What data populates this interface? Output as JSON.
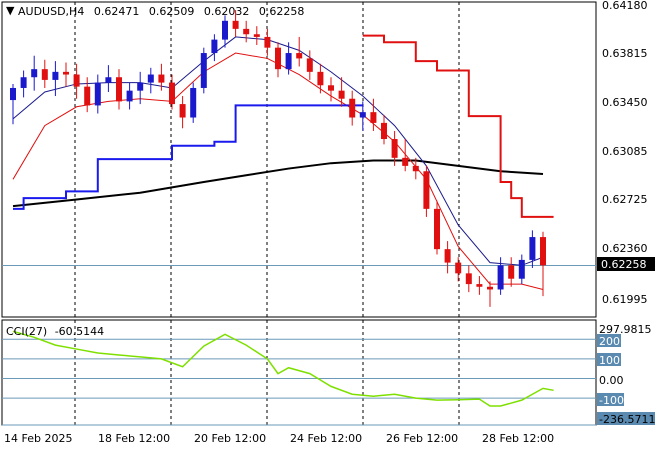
{
  "window": {
    "symbol_label": "AUDUSD,H4",
    "open": "0.62471",
    "high": "0.62509",
    "low": "0.62032",
    "close": "0.62258"
  },
  "price_axis": {
    "ticks": [
      "0.64180",
      "0.63815",
      "0.63450",
      "0.63085",
      "0.62725",
      "0.62360",
      "0.61995"
    ],
    "current_price_tag": "0.62258",
    "current_price_value": 0.62258
  },
  "indicator": {
    "label": "CCI(27)",
    "value": "-60.5144",
    "max_label": "297.9815",
    "min_label": "-236.5711",
    "levels": [
      "200",
      "100",
      "0.00",
      "-100"
    ]
  },
  "time_axis": {
    "labels": [
      "14 Feb 2025",
      "18 Feb 12:00",
      "20 Feb 12:00",
      "24 Feb 12:00",
      "26 Feb 12:00",
      "28 Feb 12:00"
    ]
  },
  "colors": {
    "bull": "#1a1acc",
    "bear": "#e01010",
    "ma_long": "#000000",
    "ma_short": "#1a1a8c",
    "envelope_red": "#e01010",
    "stop_blue": "#1a1aee",
    "cci_line": "#7ee000",
    "level_line": "#6a9ab8",
    "price_tag_bg": "#000000",
    "level_tag_bg": "#5a8ab0"
  },
  "chart_data": {
    "type": "candlestick",
    "price_range": [
      0.61875,
      0.6422
    ],
    "cci_range": [
      -236.5711,
      297.9815
    ],
    "candles": [
      [
        0.6349,
        0.6361,
        0.6331,
        0.6358
      ],
      [
        0.6358,
        0.6371,
        0.6351,
        0.6366
      ],
      [
        0.6366,
        0.6382,
        0.6356,
        0.6372
      ],
      [
        0.6372,
        0.6379,
        0.6358,
        0.6364
      ],
      [
        0.6364,
        0.6378,
        0.6352,
        0.637
      ],
      [
        0.637,
        0.6377,
        0.6359,
        0.6368
      ],
      [
        0.6368,
        0.6376,
        0.635,
        0.6359
      ],
      [
        0.6359,
        0.6366,
        0.634,
        0.6345
      ],
      [
        0.6345,
        0.6368,
        0.6339,
        0.6362
      ],
      [
        0.6362,
        0.6375,
        0.6355,
        0.6366
      ],
      [
        0.6366,
        0.6372,
        0.6342,
        0.6348
      ],
      [
        0.6348,
        0.6362,
        0.6342,
        0.6356
      ],
      [
        0.6356,
        0.637,
        0.6346,
        0.6362
      ],
      [
        0.6362,
        0.6373,
        0.6354,
        0.6368
      ],
      [
        0.6368,
        0.6376,
        0.6356,
        0.6362
      ],
      [
        0.6362,
        0.6368,
        0.6342,
        0.6346
      ],
      [
        0.6346,
        0.6352,
        0.6328,
        0.6336
      ],
      [
        0.6336,
        0.6362,
        0.6332,
        0.6358
      ],
      [
        0.6358,
        0.6388,
        0.6354,
        0.6384
      ],
      [
        0.6384,
        0.6398,
        0.6378,
        0.6394
      ],
      [
        0.6394,
        0.6412,
        0.6388,
        0.6408
      ],
      [
        0.6408,
        0.6416,
        0.6396,
        0.6402
      ],
      [
        0.6402,
        0.6408,
        0.6392,
        0.6398
      ],
      [
        0.6398,
        0.6404,
        0.639,
        0.6396
      ],
      [
        0.6396,
        0.6402,
        0.6382,
        0.6388
      ],
      [
        0.6388,
        0.6392,
        0.6366,
        0.6372
      ],
      [
        0.6372,
        0.6392,
        0.6368,
        0.6384
      ],
      [
        0.6384,
        0.6396,
        0.6374,
        0.638
      ],
      [
        0.638,
        0.6386,
        0.6364,
        0.637
      ],
      [
        0.637,
        0.6376,
        0.6354,
        0.636
      ],
      [
        0.636,
        0.6366,
        0.6348,
        0.6356
      ],
      [
        0.6356,
        0.6366,
        0.6344,
        0.635
      ],
      [
        0.635,
        0.6356,
        0.633,
        0.6336
      ],
      [
        0.6336,
        0.6348,
        0.6326,
        0.634
      ],
      [
        0.634,
        0.635,
        0.6326,
        0.6332
      ],
      [
        0.6332,
        0.6338,
        0.6316,
        0.632
      ],
      [
        0.632,
        0.6326,
        0.63,
        0.6306
      ],
      [
        0.6306,
        0.632,
        0.6296,
        0.63
      ],
      [
        0.63,
        0.6306,
        0.629,
        0.6296
      ],
      [
        0.6296,
        0.63,
        0.6262,
        0.6268
      ],
      [
        0.6268,
        0.6274,
        0.6234,
        0.6238
      ],
      [
        0.6238,
        0.6244,
        0.622,
        0.6228
      ],
      [
        0.6228,
        0.6232,
        0.6214,
        0.622
      ],
      [
        0.622,
        0.6226,
        0.6206,
        0.6212
      ],
      [
        0.6212,
        0.6218,
        0.6204,
        0.621
      ],
      [
        0.621,
        0.6214,
        0.6195,
        0.6208
      ],
      [
        0.6208,
        0.6232,
        0.6204,
        0.6226
      ],
      [
        0.6226,
        0.6232,
        0.621,
        0.6216
      ],
      [
        0.6216,
        0.6234,
        0.6212,
        0.623
      ],
      [
        0.623,
        0.6252,
        0.6224,
        0.6247
      ],
      [
        0.6247,
        0.6251,
        0.6203,
        0.6226
      ]
    ],
    "ma_long": [
      [
        0,
        0.627
      ],
      [
        6,
        0.6275
      ],
      [
        12,
        0.628
      ],
      [
        18,
        0.6288
      ],
      [
        22,
        0.6293
      ],
      [
        26,
        0.6298
      ],
      [
        30,
        0.6302
      ],
      [
        34,
        0.6304
      ],
      [
        38,
        0.6304
      ],
      [
        42,
        0.63
      ],
      [
        46,
        0.6296
      ],
      [
        50,
        0.6294
      ]
    ],
    "ma_short": [
      [
        0,
        0.6335
      ],
      [
        3,
        0.6355
      ],
      [
        6,
        0.6361
      ],
      [
        9,
        0.6362
      ],
      [
        12,
        0.6362
      ],
      [
        15,
        0.6358
      ],
      [
        18,
        0.6378
      ],
      [
        21,
        0.6396
      ],
      [
        24,
        0.6394
      ],
      [
        27,
        0.6386
      ],
      [
        30,
        0.637
      ],
      [
        33,
        0.6352
      ],
      [
        36,
        0.633
      ],
      [
        39,
        0.63
      ],
      [
        42,
        0.6256
      ],
      [
        45,
        0.6228
      ],
      [
        48,
        0.6226
      ],
      [
        50,
        0.6232
      ]
    ],
    "envelope_red": [
      [
        0,
        0.629
      ],
      [
        3,
        0.633
      ],
      [
        6,
        0.6344
      ],
      [
        9,
        0.6348
      ],
      [
        12,
        0.635
      ],
      [
        15,
        0.6348
      ],
      [
        18,
        0.637
      ],
      [
        21,
        0.6384
      ],
      [
        24,
        0.638
      ],
      [
        27,
        0.6368
      ],
      [
        30,
        0.6352
      ],
      [
        33,
        0.6338
      ],
      [
        36,
        0.6318
      ],
      [
        39,
        0.629
      ],
      [
        42,
        0.624
      ],
      [
        45,
        0.6212
      ],
      [
        48,
        0.6212
      ],
      [
        50,
        0.6208
      ]
    ],
    "stop_blue": [
      [
        0,
        0.6268
      ],
      [
        1,
        0.6276
      ],
      [
        5,
        0.6281
      ],
      [
        8,
        0.6305
      ],
      [
        15,
        0.6315
      ],
      [
        19,
        0.6318
      ],
      [
        21,
        0.6345
      ],
      [
        33,
        0.6345
      ]
    ],
    "stop_red": [
      [
        33,
        0.6397
      ],
      [
        35,
        0.6392
      ],
      [
        38,
        0.6378
      ],
      [
        40,
        0.6371
      ],
      [
        43,
        0.6337
      ],
      [
        46,
        0.6288
      ],
      [
        47,
        0.6276
      ],
      [
        48,
        0.6262
      ],
      [
        51,
        0.6262
      ]
    ],
    "cci": [
      [
        0,
        240
      ],
      [
        2,
        210
      ],
      [
        4,
        170
      ],
      [
        6,
        150
      ],
      [
        8,
        130
      ],
      [
        10,
        120
      ],
      [
        12,
        110
      ],
      [
        14,
        100
      ],
      [
        16,
        60
      ],
      [
        18,
        165
      ],
      [
        20,
        225
      ],
      [
        22,
        170
      ],
      [
        24,
        100
      ],
      [
        25,
        25
      ],
      [
        26,
        55
      ],
      [
        28,
        25
      ],
      [
        30,
        -40
      ],
      [
        32,
        -80
      ],
      [
        34,
        -90
      ],
      [
        36,
        -80
      ],
      [
        38,
        -100
      ],
      [
        40,
        -110
      ],
      [
        42,
        -108
      ],
      [
        44,
        -105
      ],
      [
        45,
        -140
      ],
      [
        46,
        -140
      ],
      [
        48,
        -110
      ],
      [
        49,
        -80
      ],
      [
        50,
        -50
      ],
      [
        51,
        -60
      ]
    ]
  }
}
